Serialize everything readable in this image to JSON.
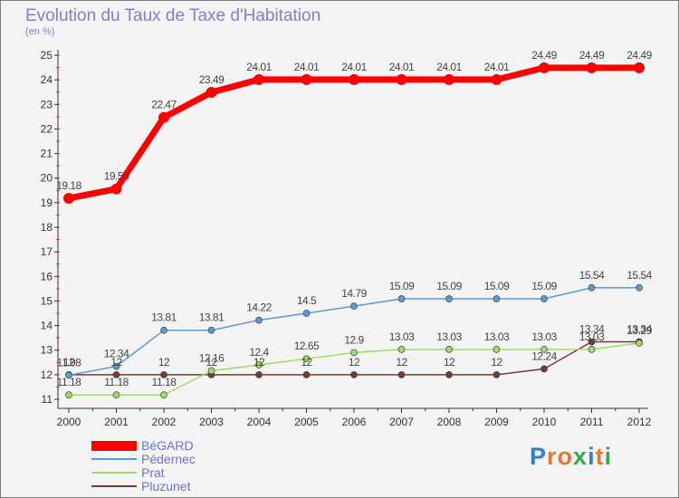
{
  "header": {
    "title": "Evolution du Taux de Taxe d'Habitation",
    "subtitle": "(en %)"
  },
  "logo": {
    "text": "Proxiti",
    "colors": [
      "#2f7fd2",
      "#e8762c",
      "#e8762c",
      "#3aa64a",
      "#2f7fd2",
      "#e8762c",
      "#3aa64a"
    ]
  },
  "chart_data": {
    "type": "line",
    "title": "Evolution du Taux de Taxe d'Habitation",
    "ylabel": "(en %)",
    "x": [
      "2000",
      "2001",
      "2002",
      "2003",
      "2004",
      "2005",
      "2006",
      "2007",
      "2008",
      "2009",
      "2010",
      "2011",
      "2012"
    ],
    "ylim": [
      11,
      25
    ],
    "yticks": [
      11,
      12,
      13,
      14,
      15,
      16,
      17,
      18,
      19,
      20,
      21,
      22,
      23,
      24,
      25
    ],
    "grid": false,
    "legend_position": "bottom-left",
    "series": [
      {
        "name": "BéGARD",
        "color": "#ff0000",
        "values": [
          19.18,
          19.56,
          22.47,
          23.49,
          24.01,
          24.01,
          24.01,
          24.01,
          24.01,
          24.01,
          24.49,
          24.49,
          24.49
        ],
        "labels": [
          "19.18",
          "19.56",
          "22.47",
          "23.49",
          "24.01",
          "24.01",
          "24.01",
          "24.01",
          "24.01",
          "24.01",
          "24.49",
          "24.49",
          "24.49"
        ]
      },
      {
        "name": "Pédernec",
        "color": "#5b9bd5",
        "values": [
          11.98,
          12.34,
          13.81,
          13.81,
          14.22,
          14.5,
          14.79,
          15.09,
          15.09,
          15.09,
          15.09,
          15.54,
          15.54
        ],
        "labels": [
          "11.98",
          "12.34",
          "13.81",
          "13.81",
          "14.22",
          "14.5",
          "14.79",
          "15.09",
          "15.09",
          "15.09",
          "15.09",
          "15.54",
          "15.54"
        ]
      },
      {
        "name": "Prat",
        "color": "#99dd66",
        "values": [
          11.18,
          11.18,
          11.18,
          12.16,
          12.4,
          12.65,
          12.9,
          13.03,
          13.03,
          13.03,
          13.03,
          13.03,
          13.29
        ],
        "labels": [
          "11.18",
          "11.18",
          "11.18",
          "12.16",
          "12.4",
          "12.65",
          "12.9",
          "13.03",
          "13.03",
          "13.03",
          "13.03",
          "13.03",
          "13.29"
        ]
      },
      {
        "name": "Pluzunet",
        "color": "#7a3838",
        "values": [
          12,
          12,
          12,
          12,
          12,
          12,
          12,
          12,
          12,
          12,
          12.24,
          13.34,
          13.34
        ],
        "labels": [
          "12",
          "12",
          "12",
          "12",
          "12",
          "12",
          "12",
          "12",
          "12",
          "12",
          "12.24",
          "13.34",
          "13.34"
        ]
      }
    ]
  }
}
